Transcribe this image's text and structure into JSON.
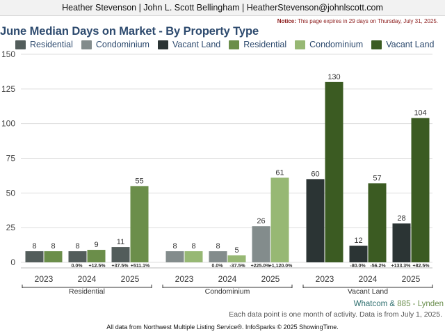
{
  "header": {
    "agent_line": "Heather Stevenson | John L. Scott Bellingham | HeatherStevenson@johnlscott.com"
  },
  "notice": {
    "label": "Notice:",
    "text": " This page expires in 29 days on Thursday, July 31, 2025."
  },
  "footer": {
    "market_first": "Whatcom",
    "market_amp": " & ",
    "market_second": "885 - Lynden",
    "data_note": "Each data point is one month of activity. Data is from July 1, 2025.",
    "source": "All data from Northwest Multiple Listing Service®. InfoSparks © 2025 ShowingTime."
  },
  "colors": {
    "residential_a": "#535d5b",
    "condominium_a": "#838c8c",
    "vacant_land_a": "#2b3434",
    "residential_b": "#6b8e4a",
    "condominium_b": "#97b874",
    "vacant_land_b": "#3b5b22",
    "title": "#2d4a6e"
  },
  "chart_data": {
    "type": "bar",
    "title": "June Median Days on Market - By Property Type",
    "ylim": [
      0,
      150
    ],
    "yticks": [
      "0",
      "25",
      "50",
      "75",
      "100",
      "125",
      "150"
    ],
    "grid": true,
    "legend_position": "top",
    "legend": [
      {
        "name": "Residential",
        "color": "#535d5b"
      },
      {
        "name": "Condominium",
        "color": "#838c8c"
      },
      {
        "name": "Vacant Land",
        "color": "#2b3434"
      },
      {
        "name": "Residential",
        "color": "#6b8e4a"
      },
      {
        "name": "Condominium",
        "color": "#97b874"
      },
      {
        "name": "Vacant Land",
        "color": "#3b5b22"
      }
    ],
    "groups": [
      {
        "name": "Residential",
        "years": [
          {
            "year": "2023",
            "a": 8,
            "b": 8,
            "a_change": "",
            "b_change": ""
          },
          {
            "year": "2024",
            "a": 8,
            "b": 9,
            "a_change": "0.0%",
            "b_change": "+12.5%"
          },
          {
            "year": "2025",
            "a": 11,
            "b": 55,
            "a_change": "+37.5%",
            "b_change": "+511.1%"
          }
        ]
      },
      {
        "name": "Condominium",
        "years": [
          {
            "year": "2023",
            "a": 8,
            "b": 8,
            "a_change": "",
            "b_change": ""
          },
          {
            "year": "2024",
            "a": 8,
            "b": 5,
            "a_change": "0.0%",
            "b_change": "-37.5%"
          },
          {
            "year": "2025",
            "a": 26,
            "b": 61,
            "a_change": "+225.0%",
            "b_change": "+1,120.0%"
          }
        ]
      },
      {
        "name": "Vacant Land",
        "years": [
          {
            "year": "2023",
            "a": 60,
            "b": 130,
            "a_change": "",
            "b_change": ""
          },
          {
            "year": "2024",
            "a": 12,
            "b": 57,
            "a_change": "-80.0%",
            "b_change": "-56.2%"
          },
          {
            "year": "2025",
            "a": 28,
            "b": 104,
            "a_change": "+133.3%",
            "b_change": "+82.5%"
          }
        ]
      }
    ]
  }
}
